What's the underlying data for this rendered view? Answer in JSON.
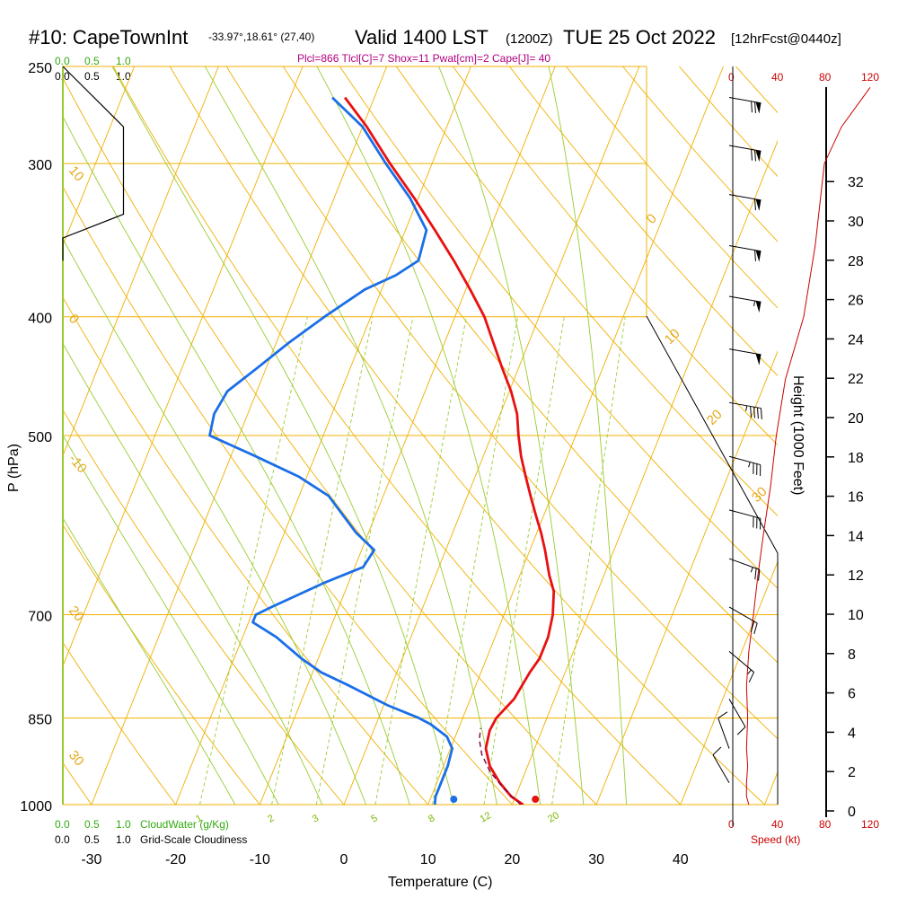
{
  "header": {
    "station": "#10: CapeTownInt",
    "coords": "-33.97°,18.61° (27,40)",
    "valid": "Valid 1400 LST",
    "zulu": "(1200Z)",
    "date": "TUE 25 Oct 2022",
    "forecast": "[12hrFcst@0440z]",
    "indices": "Plcl=866 Tlcl[C]=7 Shox=11 Pwat[cm]=2 Cape[J]= 40"
  },
  "scales": {
    "cloudwater_ticks": [
      "0.0",
      "0.5",
      "1.0"
    ],
    "cloudiness_ticks": [
      "0.0",
      "0.5",
      "1.0"
    ],
    "cloudwater_label": "CloudWater (g/Kg)",
    "cloudiness_label": "Grid-Scale Cloudiness",
    "speed_ticks": [
      "0",
      "40",
      "80",
      "120"
    ],
    "speed_label": "Speed (kt)"
  },
  "colors": {
    "temperature": "#e81010",
    "dewpoint": "#1a6fe8",
    "isobar": "#f0b000",
    "dry_adiabat": "#f0b000",
    "moist_adiabat": "#99cc33",
    "mixing_ratio": "#99cc33",
    "parcel": "#800040",
    "speed": "#cc0000"
  },
  "chart_data": {
    "type": "line",
    "title": "Skew-T Log-P Sounding",
    "xlabel": "Temperature (C)",
    "ylabel": "P (hPa)",
    "y2label": "Height (1000 Feet)",
    "xlim": [
      -33,
      46
    ],
    "ylim": [
      1000,
      250
    ],
    "x_ticks": [
      -30,
      -20,
      -10,
      0,
      10,
      20,
      30,
      40
    ],
    "pressure_ticks": [
      250,
      300,
      400,
      500,
      700,
      850,
      1000
    ],
    "height_ticks": [
      0,
      2,
      4,
      6,
      8,
      10,
      12,
      14,
      16,
      18,
      20,
      22,
      24,
      26,
      28,
      30,
      32
    ],
    "dry_adiabat_labels": [
      {
        "value": "30"
      },
      {
        "value": "20"
      },
      {
        "value": "10"
      },
      {
        "value": "0"
      },
      {
        "value": "-10"
      },
      {
        "value": "-20"
      },
      {
        "value": "-30"
      }
    ],
    "theta_labels": [
      "0",
      "10",
      "20",
      "30"
    ],
    "mixing_ratio_labels": [
      "1",
      "2",
      "3",
      "5",
      "8",
      "12",
      "20"
    ],
    "series": [
      {
        "name": "Temperature",
        "color": "#e81010",
        "points": [
          [
            1000,
            21.3
          ],
          [
            985,
            19.5
          ],
          [
            960,
            17.5
          ],
          [
            930,
            15.5
          ],
          [
            900,
            14.2
          ],
          [
            870,
            13.8
          ],
          [
            850,
            14.0
          ],
          [
            820,
            15.2
          ],
          [
            780,
            15.8
          ],
          [
            760,
            16.3
          ],
          [
            730,
            16.3
          ],
          [
            700,
            15.8
          ],
          [
            670,
            14.8
          ],
          [
            650,
            13.5
          ],
          [
            620,
            11.8
          ],
          [
            600,
            10.5
          ],
          [
            580,
            9.0
          ],
          [
            560,
            7.5
          ],
          [
            540,
            6.0
          ],
          [
            520,
            4.5
          ],
          [
            500,
            3.2
          ],
          [
            480,
            2.0
          ],
          [
            460,
            0.2
          ],
          [
            440,
            -2.0
          ],
          [
            420,
            -4.2
          ],
          [
            400,
            -6.5
          ],
          [
            380,
            -9.5
          ],
          [
            360,
            -12.8
          ],
          [
            340,
            -16.5
          ],
          [
            320,
            -20.5
          ],
          [
            300,
            -25.0
          ],
          [
            280,
            -29.5
          ],
          [
            265,
            -33.5
          ]
        ]
      },
      {
        "name": "Dewpoint",
        "color": "#1a6fe8",
        "points": [
          [
            1000,
            10.8
          ],
          [
            985,
            10.5
          ],
          [
            960,
            10.5
          ],
          [
            930,
            10.5
          ],
          [
            900,
            10.2
          ],
          [
            880,
            9.0
          ],
          [
            860,
            6.5
          ],
          [
            850,
            4.8
          ],
          [
            830,
            0.5
          ],
          [
            800,
            -5.0
          ],
          [
            780,
            -9.0
          ],
          [
            760,
            -12.0
          ],
          [
            730,
            -16.0
          ],
          [
            710,
            -19.5
          ],
          [
            700,
            -19.5
          ],
          [
            690,
            -18.0
          ],
          [
            660,
            -13.0
          ],
          [
            640,
            -9.0
          ],
          [
            620,
            -8.5
          ],
          [
            600,
            -11.5
          ],
          [
            560,
            -16.5
          ],
          [
            540,
            -21.0
          ],
          [
            520,
            -27.0
          ],
          [
            500,
            -33.5
          ],
          [
            480,
            -34.0
          ],
          [
            460,
            -33.5
          ],
          [
            440,
            -31.0
          ],
          [
            420,
            -28.5
          ],
          [
            400,
            -25.5
          ],
          [
            380,
            -22.0
          ],
          [
            370,
            -19.0
          ],
          [
            360,
            -17.0
          ],
          [
            340,
            -17.5
          ],
          [
            320,
            -21.0
          ],
          [
            300,
            -25.5
          ],
          [
            280,
            -30.0
          ],
          [
            265,
            -35.0
          ]
        ]
      },
      {
        "name": "Parcel",
        "color": "#800040",
        "points": [
          [
            1000,
            21.0
          ],
          [
            970,
            18.2
          ],
          [
            940,
            15.8
          ],
          [
            910,
            14.0
          ],
          [
            885,
            13.0
          ],
          [
            866,
            12.6
          ]
        ]
      }
    ],
    "surface": {
      "temperature_marker": 22.5,
      "dewpoint_marker": 12.8
    },
    "cloudiness_profile": [
      [
        250,
        0.0
      ],
      [
        280,
        0.9
      ],
      [
        330,
        0.9
      ],
      [
        345,
        0.0
      ],
      [
        360,
        0.0
      ]
    ],
    "wind_speed_profile": [
      [
        1000,
        14
      ],
      [
        985,
        12
      ],
      [
        960,
        12
      ],
      [
        930,
        13
      ],
      [
        900,
        12
      ],
      [
        850,
        13
      ],
      [
        800,
        12
      ],
      [
        750,
        14
      ],
      [
        700,
        18
      ],
      [
        650,
        22
      ],
      [
        600,
        27
      ],
      [
        550,
        33
      ],
      [
        500,
        38
      ],
      [
        450,
        46
      ],
      [
        400,
        62
      ],
      [
        350,
        72
      ],
      [
        300,
        80
      ],
      [
        280,
        95
      ],
      [
        260,
        120
      ]
    ],
    "wind_barbs": [
      {
        "p": 265,
        "dir": 280,
        "spd": 70
      },
      {
        "p": 290,
        "dir": 280,
        "spd": 70
      },
      {
        "p": 318,
        "dir": 280,
        "spd": 60
      },
      {
        "p": 350,
        "dir": 280,
        "spd": 60
      },
      {
        "p": 385,
        "dir": 280,
        "spd": 55
      },
      {
        "p": 425,
        "dir": 280,
        "spd": 50
      },
      {
        "p": 470,
        "dir": 280,
        "spd": 45
      },
      {
        "p": 520,
        "dir": 285,
        "spd": 35
      },
      {
        "p": 575,
        "dir": 285,
        "spd": 30
      },
      {
        "p": 630,
        "dir": 290,
        "spd": 25
      },
      {
        "p": 690,
        "dir": 300,
        "spd": 20
      },
      {
        "p": 750,
        "dir": 310,
        "spd": 15
      },
      {
        "p": 820,
        "dir": 330,
        "spd": 10
      },
      {
        "p": 900,
        "dir": 160,
        "spd": 10
      },
      {
        "p": 960,
        "dir": 150,
        "spd": 10
      }
    ]
  }
}
